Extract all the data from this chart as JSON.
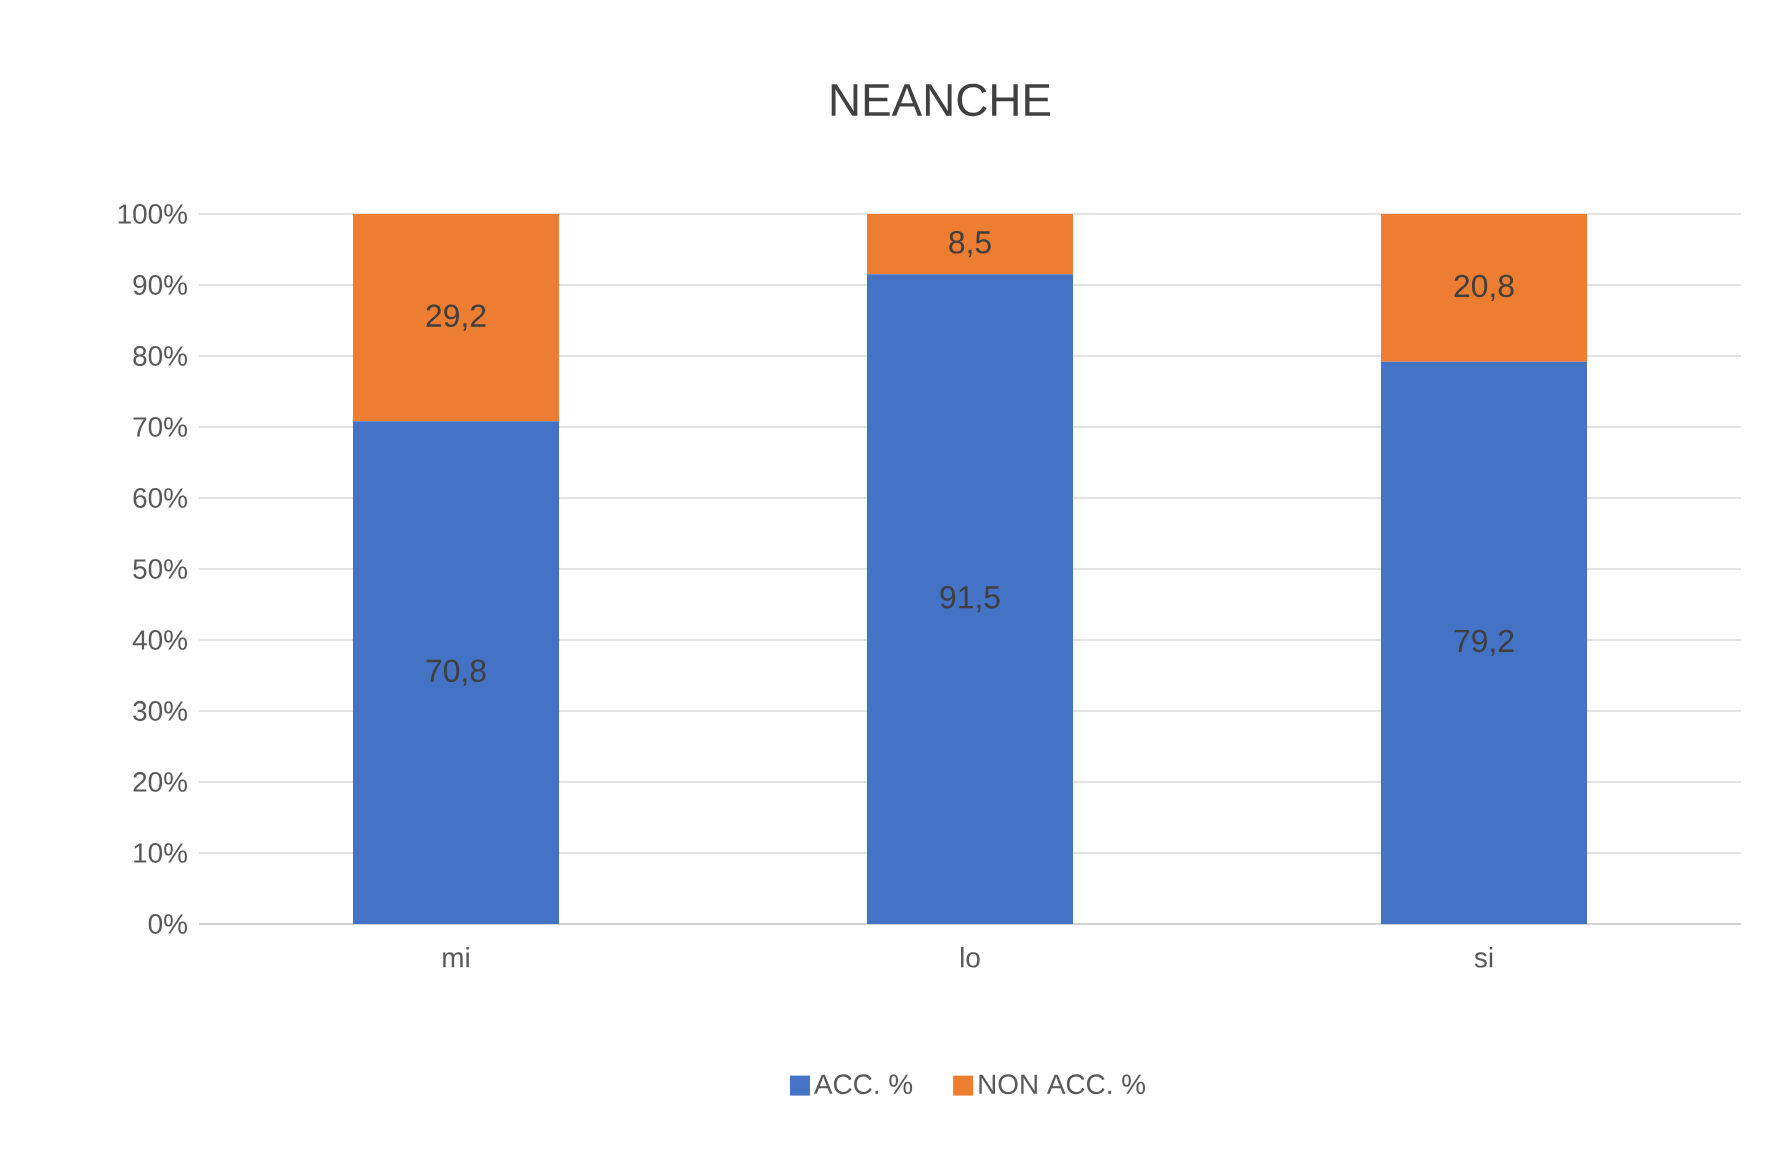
{
  "chart_data": {
    "type": "bar",
    "stacked": true,
    "title": "NEANCHE",
    "categories": [
      "mi",
      "lo",
      "si"
    ],
    "series": [
      {
        "name": "ACC. %",
        "color": "#4472c4",
        "values": [
          70.8,
          91.5,
          79.2
        ],
        "value_labels": [
          "70,8",
          "91,5",
          "79,2"
        ]
      },
      {
        "name": "NON ACC. %",
        "color": "#ed7d31",
        "values": [
          29.2,
          8.5,
          20.8
        ],
        "value_labels": [
          "29,2",
          "8,5",
          "20,8"
        ]
      }
    ],
    "ylim": [
      0,
      100
    ],
    "yticks": [
      {
        "value": 0,
        "label": "0%"
      },
      {
        "value": 10,
        "label": "10%"
      },
      {
        "value": 20,
        "label": "20%"
      },
      {
        "value": 30,
        "label": "30%"
      },
      {
        "value": 40,
        "label": "40%"
      },
      {
        "value": 50,
        "label": "50%"
      },
      {
        "value": 60,
        "label": "60%"
      },
      {
        "value": 70,
        "label": "70%"
      },
      {
        "value": 80,
        "label": "80%"
      },
      {
        "value": 90,
        "label": "90%"
      },
      {
        "value": 100,
        "label": "100%"
      }
    ],
    "grid": "y",
    "legend": "bottom"
  }
}
